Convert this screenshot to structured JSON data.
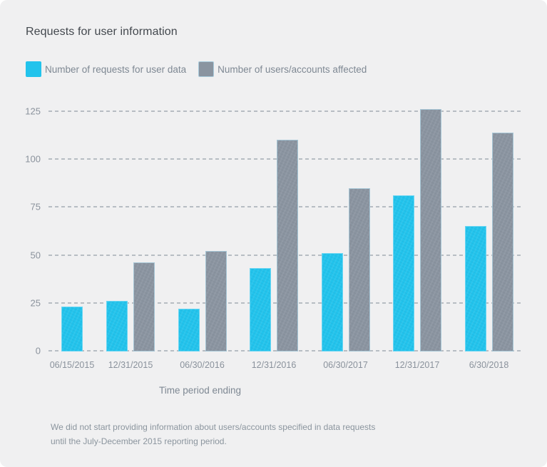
{
  "header": {
    "title": "Requests for user information"
  },
  "chart_data": {
    "type": "bar",
    "title": "Requests for user information",
    "categories": [
      "06/15/2015",
      "12/31/2015",
      "06/30/2016",
      "12/31/2016",
      "06/30/2017",
      "12/31/2017",
      "6/30/2018"
    ],
    "series": [
      {
        "name": "Number of requests for user data",
        "color": "#22c3ec",
        "values": [
          23,
          26,
          22,
          43,
          51,
          81,
          65
        ]
      },
      {
        "name": "Number of users/accounts affected",
        "color": "#8a94a0",
        "values": [
          null,
          46,
          52,
          110,
          85,
          126,
          114
        ]
      }
    ],
    "xlabel": "Time period ending",
    "ylabel": "",
    "ylim": [
      0,
      125
    ],
    "yticks": [
      0,
      25,
      50,
      75,
      100,
      125
    ],
    "grid": "horizontal-dashed",
    "legend_position": "top-left"
  },
  "footnote": {
    "lines": [
      "We did not start providing information about users/accounts specified in data requests",
      "until the July-December 2015 reporting period."
    ]
  },
  "colors": {
    "card_background": "#f0f0f1",
    "requests_bar": "#22c3ec",
    "affected_bar": "#8a94a0",
    "grid_dash": "#b7bdc3",
    "axis_text": "#8a929c",
    "title_text": "#43484e"
  }
}
